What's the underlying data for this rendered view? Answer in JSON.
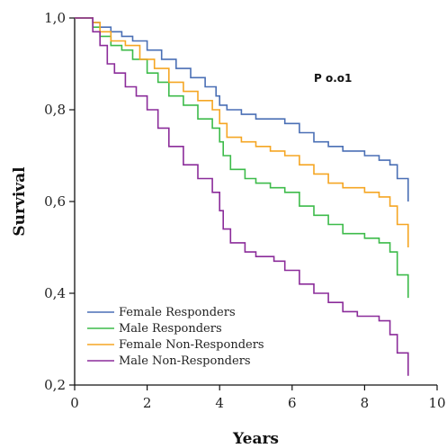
{
  "chart_data": {
    "type": "line",
    "xlabel": "Years",
    "ylabel": "Survival",
    "xlim": [
      0,
      10
    ],
    "ylim": [
      0.2,
      1.0
    ],
    "x_ticks": [
      {
        "value": 0,
        "label": "0"
      },
      {
        "value": 2,
        "label": "2"
      },
      {
        "value": 4,
        "label": "4"
      },
      {
        "value": 6,
        "label": "6"
      },
      {
        "value": 8,
        "label": "8"
      },
      {
        "value": 10,
        "label": "10"
      }
    ],
    "y_ticks": [
      {
        "value": 0.2,
        "label": "0,2"
      },
      {
        "value": 0.4,
        "label": "0,4"
      },
      {
        "value": 0.6,
        "label": "0,6"
      },
      {
        "value": 0.8,
        "label": "0,8"
      },
      {
        "value": 1.0,
        "label": "1,0"
      }
    ],
    "annotation": "P o.o1",
    "grid": false,
    "legend_position": "bottom-left",
    "series": [
      {
        "name": "Female Responders",
        "color": "#4a6fb5",
        "points": [
          [
            0,
            1.0
          ],
          [
            0.35,
            1.0
          ],
          [
            0.5,
            0.99
          ],
          [
            0.7,
            0.98
          ],
          [
            1.0,
            0.97
          ],
          [
            1.3,
            0.96
          ],
          [
            1.6,
            0.95
          ],
          [
            2.0,
            0.93
          ],
          [
            2.4,
            0.91
          ],
          [
            2.8,
            0.89
          ],
          [
            3.2,
            0.87
          ],
          [
            3.6,
            0.85
          ],
          [
            3.9,
            0.83
          ],
          [
            4.0,
            0.81
          ],
          [
            4.2,
            0.8
          ],
          [
            4.6,
            0.79
          ],
          [
            5.0,
            0.78
          ],
          [
            5.4,
            0.78
          ],
          [
            5.8,
            0.77
          ],
          [
            6.2,
            0.75
          ],
          [
            6.6,
            0.73
          ],
          [
            7.0,
            0.72
          ],
          [
            7.4,
            0.71
          ],
          [
            7.8,
            0.71
          ],
          [
            8.0,
            0.7
          ],
          [
            8.4,
            0.69
          ],
          [
            8.7,
            0.68
          ],
          [
            8.9,
            0.65
          ],
          [
            9.2,
            0.65
          ],
          [
            9.2,
            0.6
          ]
        ]
      },
      {
        "name": "Male Responders",
        "color": "#3dbb4a",
        "points": [
          [
            0,
            1.0
          ],
          [
            0.35,
            1.0
          ],
          [
            0.5,
            0.98
          ],
          [
            0.7,
            0.96
          ],
          [
            1.0,
            0.94
          ],
          [
            1.3,
            0.93
          ],
          [
            1.6,
            0.91
          ],
          [
            2.0,
            0.88
          ],
          [
            2.3,
            0.86
          ],
          [
            2.6,
            0.83
          ],
          [
            3.0,
            0.81
          ],
          [
            3.4,
            0.78
          ],
          [
            3.8,
            0.76
          ],
          [
            4.0,
            0.73
          ],
          [
            4.1,
            0.7
          ],
          [
            4.3,
            0.67
          ],
          [
            4.7,
            0.65
          ],
          [
            5.0,
            0.64
          ],
          [
            5.4,
            0.63
          ],
          [
            5.8,
            0.62
          ],
          [
            6.2,
            0.59
          ],
          [
            6.6,
            0.57
          ],
          [
            7.0,
            0.55
          ],
          [
            7.4,
            0.53
          ],
          [
            7.8,
            0.53
          ],
          [
            8.0,
            0.52
          ],
          [
            8.4,
            0.51
          ],
          [
            8.7,
            0.49
          ],
          [
            8.9,
            0.44
          ],
          [
            9.2,
            0.44
          ],
          [
            9.2,
            0.39
          ]
        ]
      },
      {
        "name": "Female Non-Responders",
        "color": "#f5a623",
        "points": [
          [
            0,
            1.0
          ],
          [
            0.35,
            1.0
          ],
          [
            0.5,
            0.99
          ],
          [
            0.7,
            0.97
          ],
          [
            1.0,
            0.95
          ],
          [
            1.4,
            0.94
          ],
          [
            1.8,
            0.91
          ],
          [
            2.2,
            0.89
          ],
          [
            2.6,
            0.86
          ],
          [
            3.0,
            0.84
          ],
          [
            3.4,
            0.82
          ],
          [
            3.8,
            0.8
          ],
          [
            4.0,
            0.77
          ],
          [
            4.2,
            0.74
          ],
          [
            4.6,
            0.73
          ],
          [
            5.0,
            0.72
          ],
          [
            5.4,
            0.71
          ],
          [
            5.8,
            0.7
          ],
          [
            6.2,
            0.68
          ],
          [
            6.6,
            0.66
          ],
          [
            7.0,
            0.64
          ],
          [
            7.4,
            0.63
          ],
          [
            7.8,
            0.63
          ],
          [
            8.0,
            0.62
          ],
          [
            8.4,
            0.61
          ],
          [
            8.7,
            0.59
          ],
          [
            8.9,
            0.55
          ],
          [
            9.2,
            0.55
          ],
          [
            9.2,
            0.5
          ]
        ]
      },
      {
        "name": "Male Non-Responders",
        "color": "#8b2c9a",
        "points": [
          [
            0,
            1.0
          ],
          [
            0.35,
            1.0
          ],
          [
            0.5,
            0.97
          ],
          [
            0.7,
            0.94
          ],
          [
            0.9,
            0.9
          ],
          [
            1.1,
            0.88
          ],
          [
            1.4,
            0.85
          ],
          [
            1.7,
            0.83
          ],
          [
            2.0,
            0.8
          ],
          [
            2.3,
            0.76
          ],
          [
            2.6,
            0.72
          ],
          [
            3.0,
            0.68
          ],
          [
            3.4,
            0.65
          ],
          [
            3.8,
            0.62
          ],
          [
            4.0,
            0.58
          ],
          [
            4.1,
            0.54
          ],
          [
            4.3,
            0.51
          ],
          [
            4.7,
            0.49
          ],
          [
            5.0,
            0.48
          ],
          [
            5.5,
            0.47
          ],
          [
            5.8,
            0.45
          ],
          [
            6.2,
            0.42
          ],
          [
            6.6,
            0.4
          ],
          [
            7.0,
            0.38
          ],
          [
            7.4,
            0.36
          ],
          [
            7.8,
            0.35
          ],
          [
            8.0,
            0.35
          ],
          [
            8.4,
            0.34
          ],
          [
            8.7,
            0.31
          ],
          [
            8.9,
            0.27
          ],
          [
            9.2,
            0.27
          ],
          [
            9.2,
            0.22
          ]
        ]
      }
    ]
  }
}
